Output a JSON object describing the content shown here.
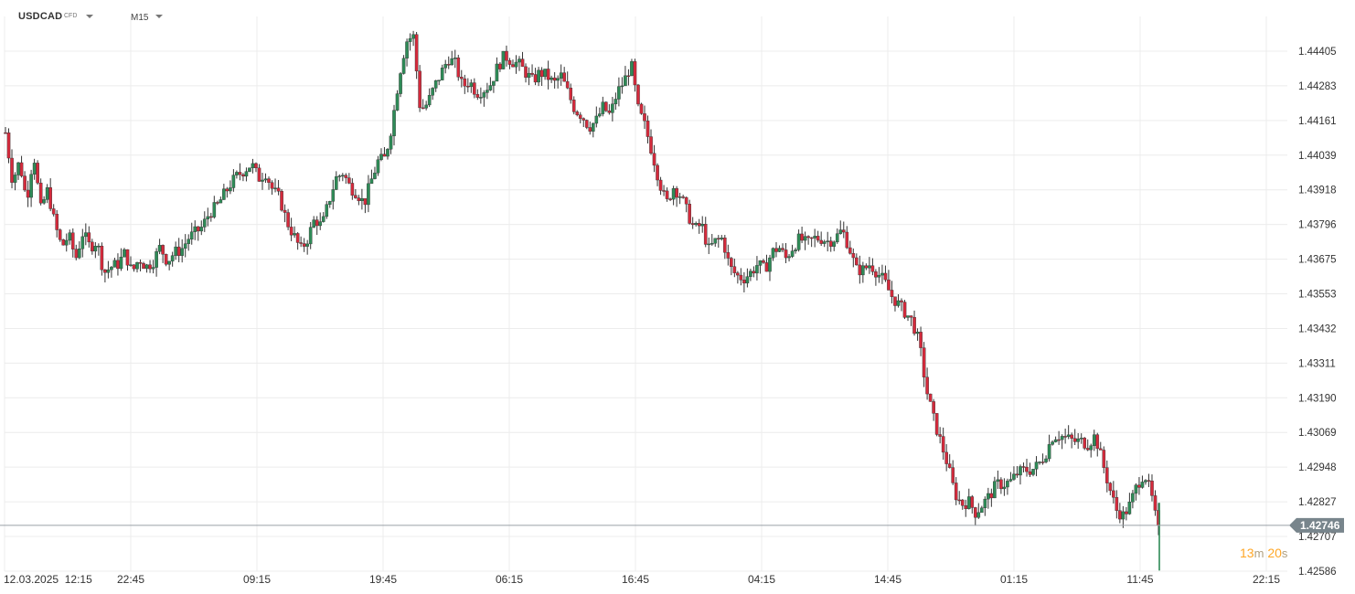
{
  "header": {
    "symbol": "USDCAD",
    "instrument_type": "CFD",
    "timeframe": "M15"
  },
  "countdown": {
    "minutes": "13",
    "minutes_unit": "m",
    "seconds": "20",
    "seconds_unit": "s"
  },
  "colors": {
    "bullish": "#2e8b57",
    "bearish": "#d42a3c",
    "grid": "#ececec",
    "current_line": "#9aa0a6",
    "current_badge": "#78858c",
    "countdown": "#ffa726"
  },
  "chart_data": {
    "type": "candlestick",
    "symbol": "USDCAD",
    "timeframe": "M15",
    "y_ticks": [
      "1.44405",
      "1.44283",
      "1.44161",
      "1.44039",
      "1.43918",
      "1.43796",
      "1.43675",
      "1.43553",
      "1.43432",
      "1.43311",
      "1.43190",
      "1.43069",
      "1.42948",
      "1.42827",
      "1.42707",
      "1.42586"
    ],
    "x_ticks": [
      "12.03.2025  12:15",
      "22:45",
      "09:15",
      "19:45",
      "06:15",
      "16:45",
      "04:15",
      "14:45",
      "01:15",
      "11:45",
      "22:15"
    ],
    "ylim": [
      1.4253,
      1.446
    ],
    "current_price": "1.42746",
    "grid": true,
    "close_path": [
      1.4412,
      1.4395,
      1.4402,
      1.4388,
      1.4405,
      1.4385,
      1.4392,
      1.438,
      1.4372,
      1.4376,
      1.4368,
      1.4377,
      1.4372,
      1.4374,
      1.4363,
      1.4365,
      1.4366,
      1.437,
      1.4363,
      1.4368,
      1.4365,
      1.4367,
      1.4372,
      1.4367,
      1.437,
      1.4371,
      1.4375,
      1.4377,
      1.4379,
      1.4384,
      1.4386,
      1.439,
      1.4394,
      1.4397,
      1.4399,
      1.4401,
      1.4396,
      1.4398,
      1.4392,
      1.4389,
      1.4381,
      1.4376,
      1.4371,
      1.4375,
      1.4382,
      1.4379,
      1.4388,
      1.4396,
      1.4398,
      1.4393,
      1.4391,
      1.4387,
      1.4395,
      1.4402,
      1.4403,
      1.4415,
      1.4432,
      1.4444,
      1.4446,
      1.442,
      1.4422,
      1.4428,
      1.4433,
      1.4438,
      1.4436,
      1.4428,
      1.443,
      1.4426,
      1.4427,
      1.4429,
      1.4435,
      1.4439,
      1.4437,
      1.4436,
      1.4433,
      1.443,
      1.4433,
      1.4432,
      1.4429,
      1.4432,
      1.4426,
      1.442,
      1.4418,
      1.4414,
      1.4416,
      1.4421,
      1.4418,
      1.4426,
      1.443,
      1.4436,
      1.442,
      1.4414,
      1.4405,
      1.4395,
      1.4387,
      1.4393,
      1.439,
      1.4384,
      1.4378,
      1.438,
      1.4371,
      1.4374,
      1.4375,
      1.4365,
      1.4362,
      1.4361,
      1.4363,
      1.4366,
      1.4364,
      1.437,
      1.4372,
      1.4368,
      1.4372,
      1.4375,
      1.4373,
      1.4375,
      1.4375,
      1.4374,
      1.4375,
      1.4378,
      1.4372,
      1.4364,
      1.4364,
      1.4366,
      1.4363,
      1.436,
      1.4355,
      1.4352,
      1.4349,
      1.4346,
      1.4338,
      1.4322,
      1.4312,
      1.4304,
      1.4296,
      1.4286,
      1.4282,
      1.4283,
      1.4279,
      1.4282,
      1.4285,
      1.4289,
      1.4289,
      1.429,
      1.4293,
      1.4294,
      1.4294,
      1.4296,
      1.43,
      1.4306,
      1.4306,
      1.4305,
      1.4304,
      1.4304,
      1.4303,
      1.4306,
      1.4297,
      1.4288,
      1.428,
      1.4278,
      1.4282,
      1.4289,
      1.4293,
      1.4285,
      1.4272
    ]
  }
}
